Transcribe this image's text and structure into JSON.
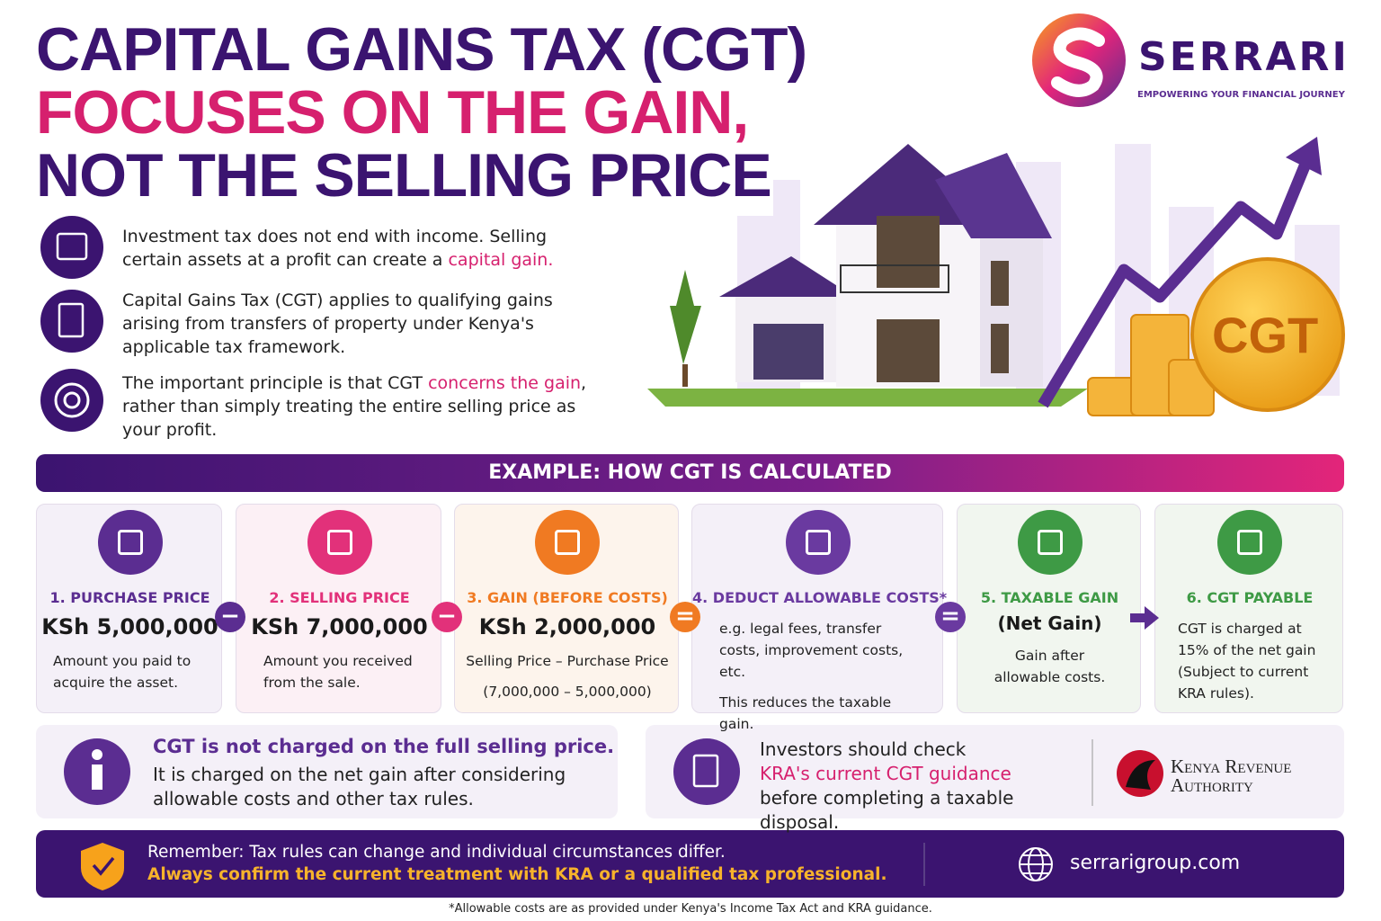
{
  "header": {
    "title_lines": [
      "CAPITAL GAINS TAX (CGT)",
      "FOCUSES ON THE GAIN,",
      "NOT THE SELLING PRICE"
    ]
  },
  "logo": {
    "name": "SERRARI",
    "tagline": "EMPOWERING YOUR FINANCIAL JOURNEY"
  },
  "intro": [
    {
      "segments": [
        {
          "text": "Investment tax does not end with income. Selling certain assets at a profit can create a ",
          "em": false
        },
        {
          "text": "capital gain.",
          "em": true
        }
      ]
    },
    {
      "segments": [
        {
          "text": "Capital Gains Tax (CGT) applies to qualifying gains arising from transfers of property under Kenya's applicable tax framework.",
          "em": false
        }
      ]
    },
    {
      "segments": [
        {
          "text": "The important principle is that CGT ",
          "em": false
        },
        {
          "text": "concerns the gain",
          "em": true
        },
        {
          "text": ", rather than simply treating the entire selling price as your profit.",
          "em": false
        }
      ]
    }
  ],
  "illustration": {
    "coin_label": "CGT"
  },
  "example": {
    "heading": "EXAMPLE: HOW CGT IS CALCULATED",
    "steps": [
      {
        "title": "1. PURCHASE PRICE",
        "amount": "KSh 5,000,000",
        "lines": [
          "Amount you paid to acquire the asset."
        ],
        "color": "#5b2d91",
        "bg": "#f4f0f8"
      },
      {
        "title": "2. SELLING PRICE",
        "amount": "KSh 7,000,000",
        "lines": [
          "Amount you received from the sale."
        ],
        "color": "#e2317a",
        "bg": "#fcf0f5"
      },
      {
        "title": "3. GAIN (BEFORE COSTS)",
        "amount": "KSh 2,000,000",
        "lines": [
          "Selling Price – Purchase Price",
          "(7,000,000 – 5,000,000)"
        ],
        "color": "#f07a22",
        "bg": "#fdf4ec"
      },
      {
        "title": "4. DEDUCT ALLOWABLE COSTS*",
        "lines": [
          "e.g. legal fees, transfer costs, improvement costs, etc.",
          "This reduces the taxable gain."
        ],
        "color": "#6a3aa0",
        "bg": "#f4f0f8"
      },
      {
        "title": "5. TAXABLE GAIN",
        "amount": "(Net Gain)",
        "lines": [
          "Gain after allowable costs."
        ],
        "color": "#3e9a45",
        "bg": "#f1f6ef"
      },
      {
        "title": "6. CGT PAYABLE",
        "lines": [
          "CGT is charged at 15% of the net gain (Subject to current KRA rules)."
        ],
        "color": "#3e9a45",
        "bg": "#f1f6ef"
      }
    ],
    "operators": [
      {
        "symbol": "−",
        "color": "#5b2d91"
      },
      {
        "symbol": "−",
        "color": "#e2317a"
      },
      {
        "symbol": "=",
        "color": "#f07a22"
      },
      {
        "symbol": "=",
        "color": "#6a3aa0"
      }
    ]
  },
  "notes": {
    "left": {
      "title": "CGT is not charged on the full selling price.",
      "body": "It is charged on the net gain after considering allowable costs and other tax rules."
    },
    "right": {
      "segments": [
        {
          "text": "Investors should check",
          "em": false
        },
        {
          "text": "KRA's current CGT guidance",
          "em": true
        },
        {
          "text": "before completing a taxable disposal.",
          "em": false
        }
      ]
    },
    "kra": {
      "lines": [
        "Kenya Revenue",
        "Authority"
      ]
    }
  },
  "footer": {
    "line1": "Remember: Tax rules can change and individual circumstances differ.",
    "line2": "Always confirm the current treatment with KRA or a qualified tax professional.",
    "website": "serrarigroup.com"
  },
  "footnote": "*Allowable costs are as provided under Kenya's Income Tax Act and KRA guidance."
}
